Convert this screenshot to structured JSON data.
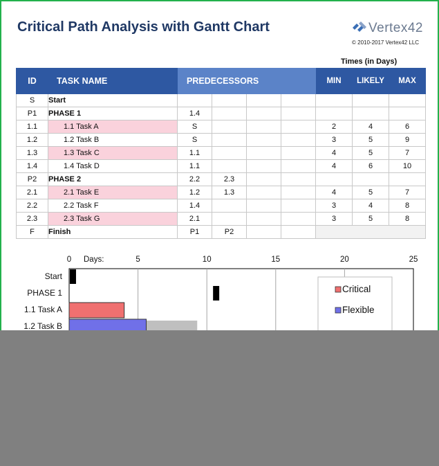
{
  "header": {
    "title": "Critical Path Analysis with Gantt Chart",
    "logo_text": "Vertex42",
    "copyright": "© 2010-2017 Vertex42 LLC",
    "times_label": "Times (in Days)"
  },
  "table": {
    "headers": {
      "id": "ID",
      "task_name": "TASK NAME",
      "predecessors": "PREDECESSORS",
      "min": "MIN",
      "likely": "LIKELY",
      "max": "MAX"
    },
    "rows": [
      {
        "id": "S",
        "name": "Start",
        "p1": "",
        "p2": "",
        "min": "",
        "likely": "",
        "max": "",
        "type": "phase",
        "critical": false
      },
      {
        "id": "P1",
        "name": "PHASE 1",
        "p1": "1.4",
        "p2": "",
        "min": "",
        "likely": "",
        "max": "",
        "type": "phase",
        "critical": false
      },
      {
        "id": "1.1",
        "name": "1.1 Task A",
        "p1": "S",
        "p2": "",
        "min": "2",
        "likely": "4",
        "max": "6",
        "type": "task",
        "critical": true
      },
      {
        "id": "1.2",
        "name": "1.2 Task B",
        "p1": "S",
        "p2": "",
        "min": "3",
        "likely": "5",
        "max": "9",
        "type": "task",
        "critical": false
      },
      {
        "id": "1.3",
        "name": "1.3 Task C",
        "p1": "1.1",
        "p2": "",
        "min": "4",
        "likely": "5",
        "max": "7",
        "type": "task",
        "critical": true
      },
      {
        "id": "1.4",
        "name": "1.4 Task D",
        "p1": "1.1",
        "p2": "",
        "min": "4",
        "likely": "6",
        "max": "10",
        "type": "task",
        "critical": false
      },
      {
        "id": "P2",
        "name": "PHASE 2",
        "p1": "2.2",
        "p2": "2.3",
        "min": "",
        "likely": "",
        "max": "",
        "type": "phase",
        "critical": false
      },
      {
        "id": "2.1",
        "name": "2.1 Task E",
        "p1": "1.2",
        "p2": "1.3",
        "min": "4",
        "likely": "5",
        "max": "7",
        "type": "task",
        "critical": true
      },
      {
        "id": "2.2",
        "name": "2.2 Task F",
        "p1": "1.4",
        "p2": "",
        "min": "3",
        "likely": "4",
        "max": "8",
        "type": "task",
        "critical": false
      },
      {
        "id": "2.3",
        "name": "2.3 Task G",
        "p1": "2.1",
        "p2": "",
        "min": "3",
        "likely": "5",
        "max": "8",
        "type": "task",
        "critical": true
      },
      {
        "id": "F",
        "name": "Finish",
        "p1": "P1",
        "p2": "P2",
        "min": "",
        "likely": "",
        "max": "",
        "type": "phase",
        "critical": false
      }
    ]
  },
  "chart_data": {
    "type": "bar",
    "orientation": "horizontal",
    "xlabel": "Days:",
    "xlim": [
      0,
      25
    ],
    "xticks": [
      "0",
      "5",
      "10",
      "15",
      "20",
      "25"
    ],
    "grid": true,
    "legend_placement": "top-right",
    "legend": [
      {
        "name": "Critical",
        "color": "#f07070"
      },
      {
        "name": "Flexible",
        "color": "#7070e8"
      }
    ],
    "rows": [
      {
        "label": "Start",
        "start": 0,
        "end": 0.45,
        "kind": "milestone"
      },
      {
        "label": "PHASE 1",
        "start": 10.4,
        "end": 10.85,
        "kind": "milestone"
      },
      {
        "label": "1.1 Task A",
        "start": 0,
        "end": 4,
        "kind": "critical"
      },
      {
        "label": "1.2 Task B",
        "start": 0,
        "end": 5.6,
        "kind": "flexible",
        "slack_end": 9.3
      }
    ],
    "colors": {
      "critical": "#f07070",
      "flexible": "#7070e8",
      "slack": "#bfbfbf",
      "milestone": "#000000"
    }
  }
}
